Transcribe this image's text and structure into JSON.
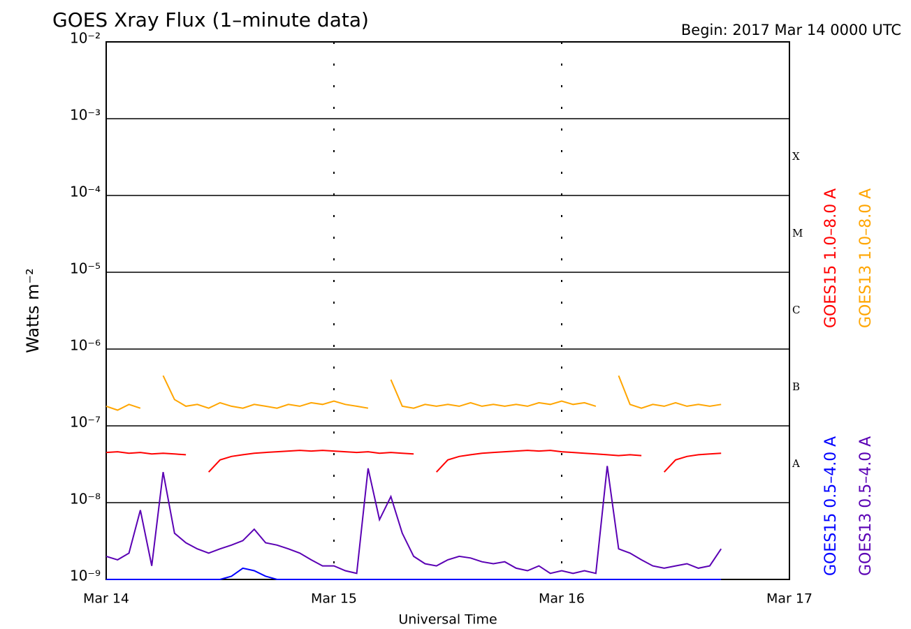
{
  "chart_data": {
    "type": "line",
    "title": "GOES Xray Flux (1–minute data)",
    "subtitle": "Begin:  2017 Mar 14 0000 UTC",
    "ylabel": "Watts m⁻²",
    "xlabel": "Universal Time",
    "log_y": true,
    "grid": true,
    "xlim": [
      0,
      3
    ],
    "xticks": [
      {
        "value": 0,
        "label": "Mar 14"
      },
      {
        "value": 1,
        "label": "Mar 15"
      },
      {
        "value": 2,
        "label": "Mar 16"
      },
      {
        "value": 3,
        "label": "Mar 17"
      }
    ],
    "ylim": [
      1e-09,
      0.01
    ],
    "yticks": [
      {
        "value": 1e-09,
        "label": "10⁻⁹"
      },
      {
        "value": 1e-08,
        "label": "10⁻⁸"
      },
      {
        "value": 1e-07,
        "label": "10⁻⁷"
      },
      {
        "value": 1e-06,
        "label": "10⁻⁶"
      },
      {
        "value": 1e-05,
        "label": "10⁻⁵"
      },
      {
        "value": 0.0001,
        "label": "10⁻⁴"
      },
      {
        "value": 0.001,
        "label": "10⁻³"
      },
      {
        "value": 0.01,
        "label": "10⁻²"
      }
    ],
    "flare_classes": [
      {
        "value": 1e-08,
        "label": "A"
      },
      {
        "value": 1e-07,
        "label": "B"
      },
      {
        "value": 1e-06,
        "label": "C"
      },
      {
        "value": 1e-05,
        "label": "M"
      },
      {
        "value": 0.0001,
        "label": "X"
      }
    ],
    "x": [
      0,
      0.05,
      0.1,
      0.15,
      0.2,
      0.25,
      0.3,
      0.35,
      0.4,
      0.45,
      0.5,
      0.55,
      0.6,
      0.65,
      0.7,
      0.75,
      0.8,
      0.85,
      0.9,
      0.95,
      1,
      1.05,
      1.1,
      1.15,
      1.2,
      1.25,
      1.3,
      1.35,
      1.4,
      1.45,
      1.5,
      1.55,
      1.6,
      1.65,
      1.7,
      1.75,
      1.8,
      1.85,
      1.9,
      1.95,
      2,
      2.05,
      2.1,
      2.15,
      2.2,
      2.25,
      2.3,
      2.35,
      2.4,
      2.45,
      2.5,
      2.55,
      2.6,
      2.65,
      2.7
    ],
    "series": [
      {
        "name": "GOES15 1.0–8.0 A",
        "color": "#ff0000",
        "values": [
          4.5e-08,
          4.6e-08,
          4.4e-08,
          4.5e-08,
          4.3e-08,
          4.4e-08,
          4.3e-08,
          4.2e-08,
          null,
          2.5e-08,
          3.6e-08,
          4e-08,
          4.2e-08,
          4.4e-08,
          4.5e-08,
          4.6e-08,
          4.7e-08,
          4.8e-08,
          4.7e-08,
          4.8e-08,
          4.7e-08,
          4.6e-08,
          4.5e-08,
          4.6e-08,
          4.4e-08,
          4.5e-08,
          4.4e-08,
          4.3e-08,
          null,
          2.5e-08,
          3.6e-08,
          4e-08,
          4.2e-08,
          4.4e-08,
          4.5e-08,
          4.6e-08,
          4.7e-08,
          4.8e-08,
          4.7e-08,
          4.8e-08,
          4.6e-08,
          4.5e-08,
          4.4e-08,
          4.3e-08,
          4.2e-08,
          4.1e-08,
          4.2e-08,
          4.1e-08,
          null,
          2.5e-08,
          3.6e-08,
          4e-08,
          4.2e-08,
          4.3e-08,
          4.4e-08
        ]
      },
      {
        "name": "GOES13 1.0–8.0 A",
        "color": "#ffa500",
        "values": [
          1.8e-07,
          1.6e-07,
          1.9e-07,
          1.7e-07,
          null,
          4.5e-07,
          2.2e-07,
          1.8e-07,
          1.9e-07,
          1.7e-07,
          2e-07,
          1.8e-07,
          1.7e-07,
          1.9e-07,
          1.8e-07,
          1.7e-07,
          1.9e-07,
          1.8e-07,
          2e-07,
          1.9e-07,
          2.1e-07,
          1.9e-07,
          1.8e-07,
          1.7e-07,
          null,
          4e-07,
          1.8e-07,
          1.7e-07,
          1.9e-07,
          1.8e-07,
          1.9e-07,
          1.8e-07,
          2e-07,
          1.8e-07,
          1.9e-07,
          1.8e-07,
          1.9e-07,
          1.8e-07,
          2e-07,
          1.9e-07,
          2.1e-07,
          1.9e-07,
          2e-07,
          1.8e-07,
          null,
          4.5e-07,
          1.9e-07,
          1.7e-07,
          1.9e-07,
          1.8e-07,
          2e-07,
          1.8e-07,
          1.9e-07,
          1.8e-07,
          1.9e-07
        ]
      },
      {
        "name": "GOES15 0.5–4.0 A",
        "color": "#0000ff",
        "values": [
          1e-09,
          1e-09,
          1e-09,
          1e-09,
          1e-09,
          1e-09,
          1e-09,
          1e-09,
          1e-09,
          1e-09,
          1e-09,
          1.1e-09,
          1.4e-09,
          1.3e-09,
          1.1e-09,
          1e-09,
          1e-09,
          1e-09,
          1e-09,
          1e-09,
          1e-09,
          1e-09,
          1e-09,
          1e-09,
          1e-09,
          1e-09,
          1e-09,
          1e-09,
          1e-09,
          1e-09,
          1e-09,
          1e-09,
          1e-09,
          1e-09,
          1e-09,
          1e-09,
          1e-09,
          1e-09,
          1e-09,
          1e-09,
          1e-09,
          1e-09,
          1e-09,
          1e-09,
          1e-09,
          1e-09,
          1e-09,
          1e-09,
          1e-09,
          1e-09,
          1e-09,
          1e-09,
          1e-09,
          1e-09,
          1e-09
        ]
      },
      {
        "name": "GOES13 0.5–4.0 A",
        "color": "#5a00b4",
        "values": [
          2e-09,
          1.8e-09,
          2.2e-09,
          8e-09,
          1.5e-09,
          2.5e-08,
          4e-09,
          3e-09,
          2.5e-09,
          2.2e-09,
          2.5e-09,
          2.8e-09,
          3.2e-09,
          4.5e-09,
          3e-09,
          2.8e-09,
          2.5e-09,
          2.2e-09,
          1.8e-09,
          1.5e-09,
          1.5e-09,
          1.3e-09,
          1.2e-09,
          2.8e-08,
          6e-09,
          1.2e-08,
          4e-09,
          2e-09,
          1.6e-09,
          1.5e-09,
          1.8e-09,
          2e-09,
          1.9e-09,
          1.7e-09,
          1.6e-09,
          1.7e-09,
          1.4e-09,
          1.3e-09,
          1.5e-09,
          1.2e-09,
          1.3e-09,
          1.2e-09,
          1.3e-09,
          1.2e-09,
          3e-08,
          2.5e-09,
          2.2e-09,
          1.8e-09,
          1.5e-09,
          1.4e-09,
          1.5e-09,
          1.6e-09,
          1.4e-09,
          1.5e-09,
          2.5e-09
        ]
      }
    ]
  }
}
